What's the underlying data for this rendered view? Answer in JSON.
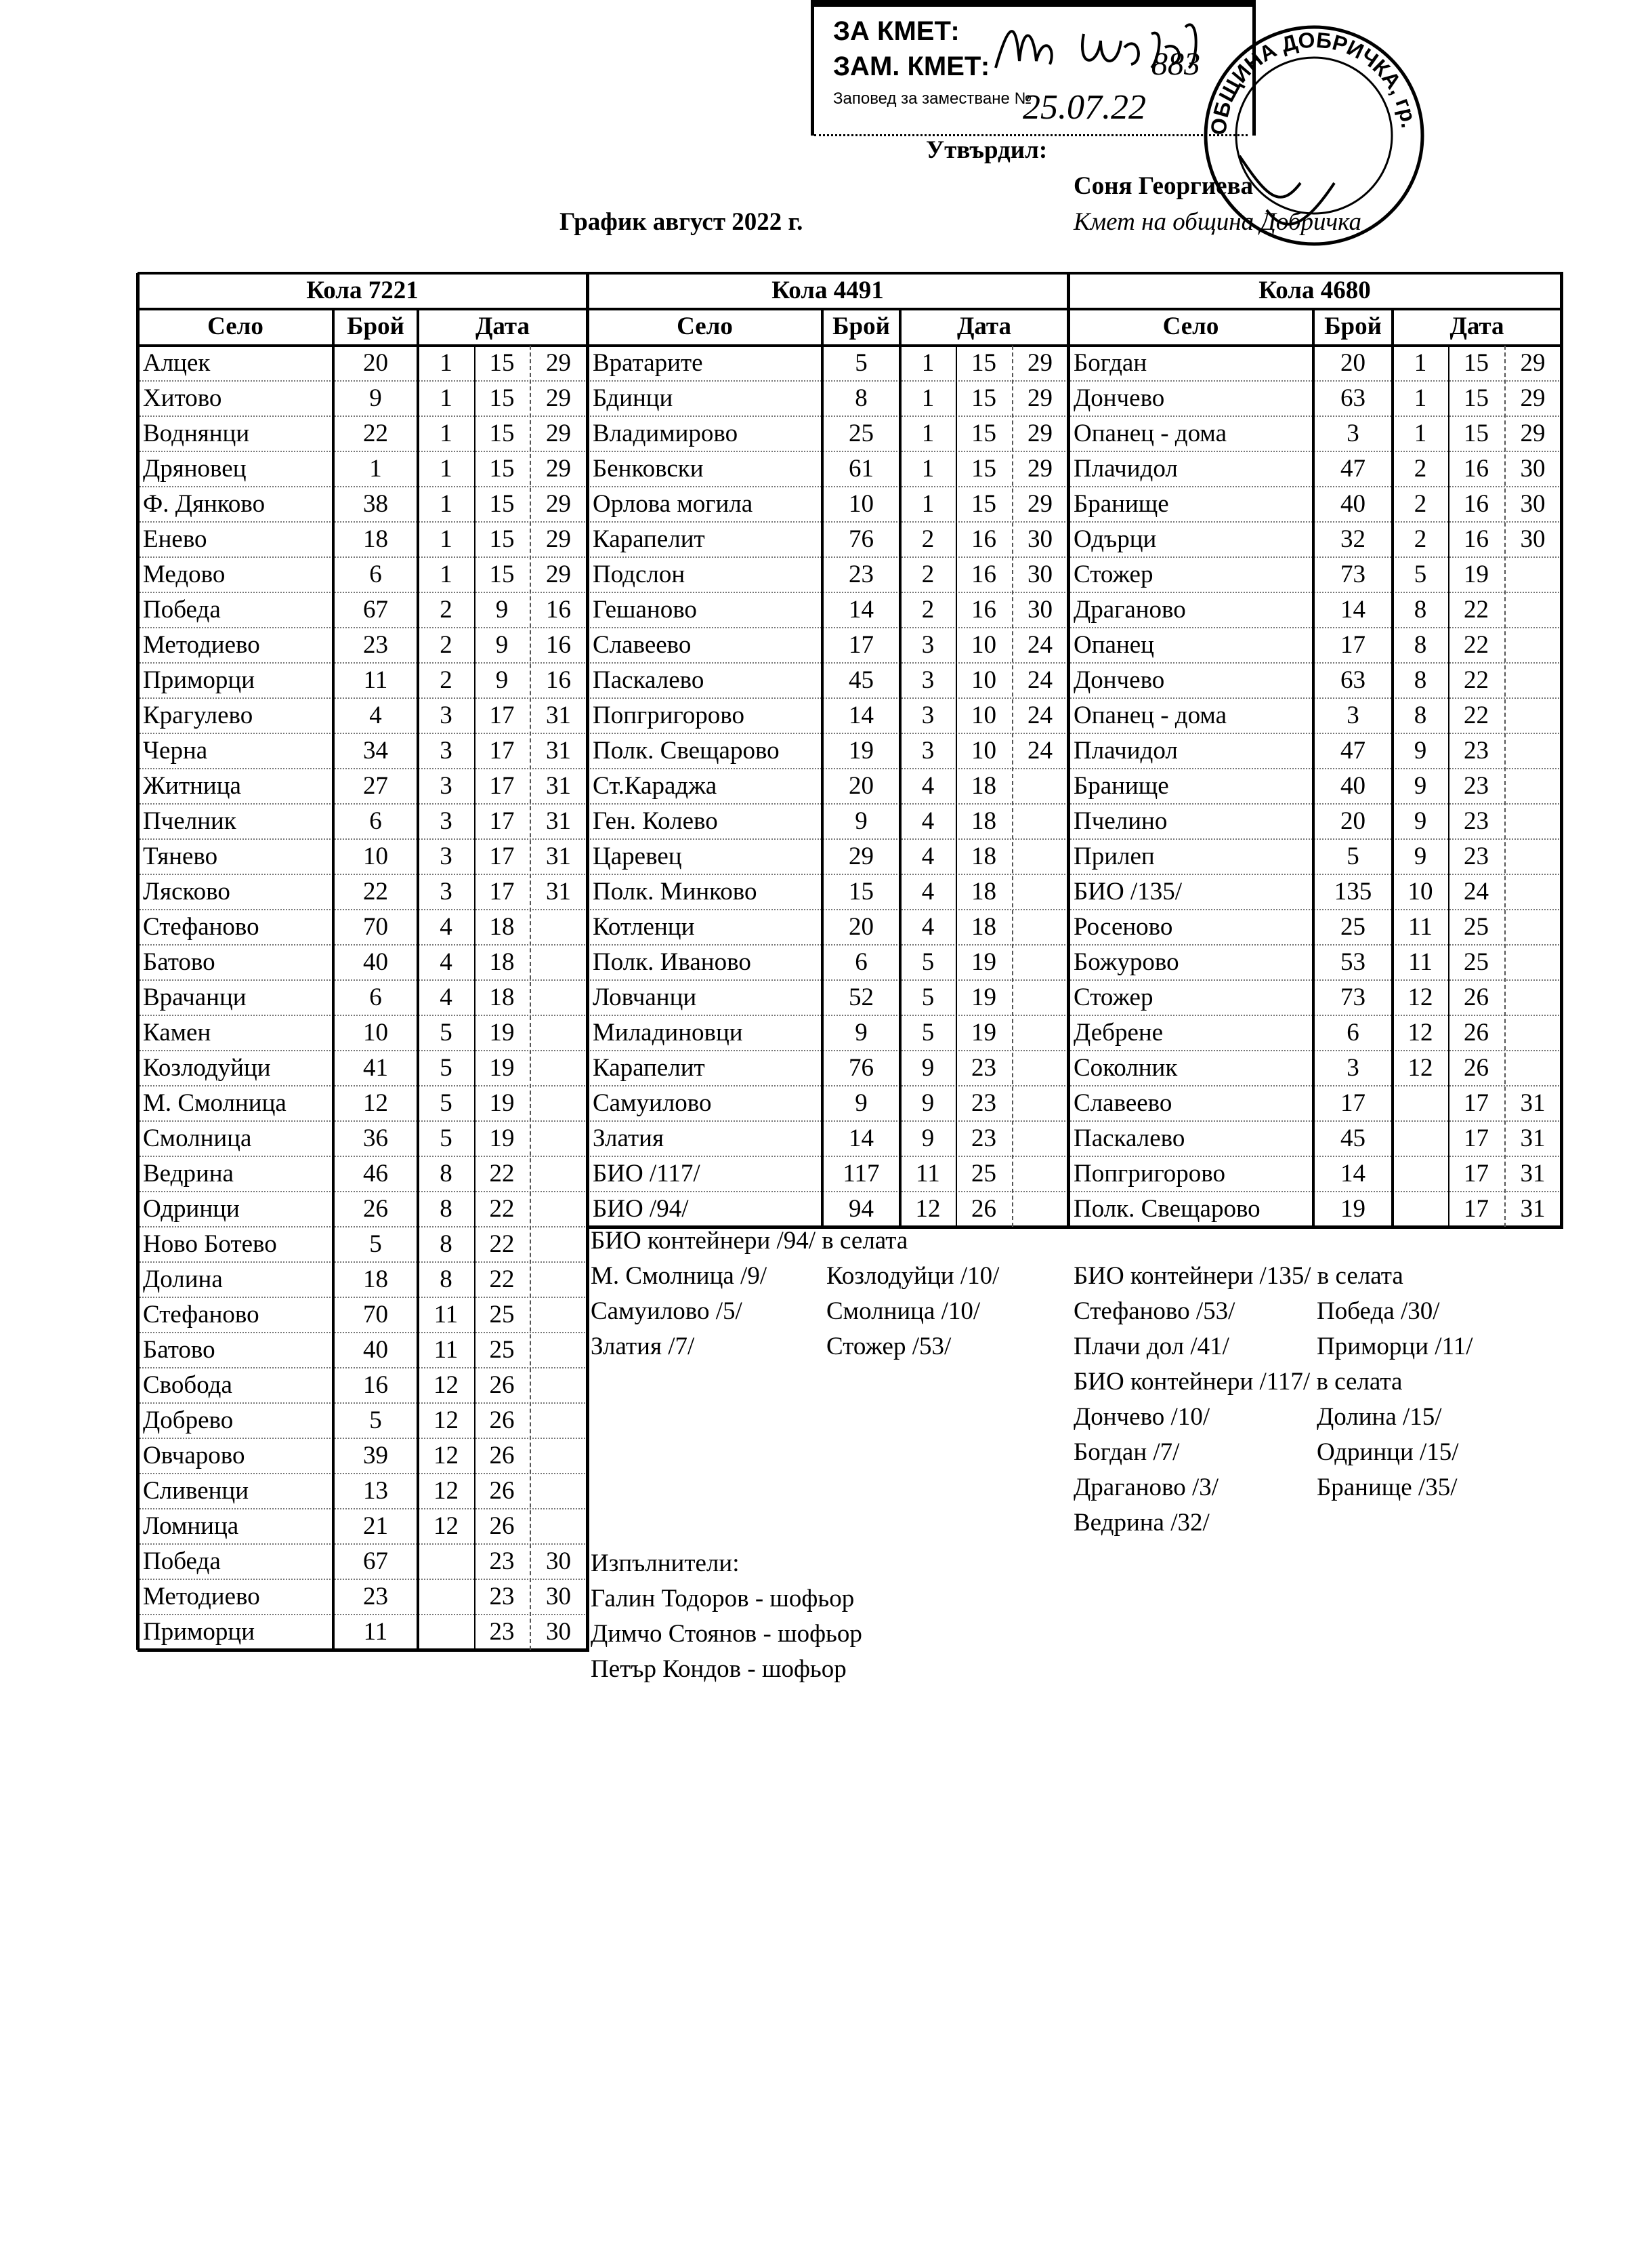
{
  "stamp": {
    "line1": "ЗА КМЕТ:",
    "line2": "ЗАМ. КМЕТ:",
    "line3": "Заповед за заместване №",
    "handwritten_number": "883",
    "handwritten_date": "25.07.22",
    "seal_text": "ОБЩИНА ДОБРИЧКА, гр. ДОБРИЧ"
  },
  "approval": {
    "label": "Утвърдил:",
    "name": "Соня Георгиева",
    "position": "Кмет  на община Добричка"
  },
  "title": "График август 2022 г.",
  "column_headers": {
    "village": "Село",
    "count": "Брой",
    "date": "Дата"
  },
  "tables": [
    {
      "title": "Кола 7221",
      "rows": [
        [
          "Алцек",
          "20",
          "1",
          "15",
          "29"
        ],
        [
          "Хитово",
          "9",
          "1",
          "15",
          "29"
        ],
        [
          "Воднянци",
          "22",
          "1",
          "15",
          "29"
        ],
        [
          "Дряновец",
          "1",
          "1",
          "15",
          "29"
        ],
        [
          "Ф. Дянково",
          "38",
          "1",
          "15",
          "29"
        ],
        [
          "Енево",
          "18",
          "1",
          "15",
          "29"
        ],
        [
          "Медово",
          "6",
          "1",
          "15",
          "29"
        ],
        [
          "Победа",
          "67",
          "2",
          "9",
          "16"
        ],
        [
          "Методиево",
          "23",
          "2",
          "9",
          "16"
        ],
        [
          "Приморци",
          "11",
          "2",
          "9",
          "16"
        ],
        [
          "Крагулево",
          "4",
          "3",
          "17",
          "31"
        ],
        [
          "Черна",
          "34",
          "3",
          "17",
          "31"
        ],
        [
          "Житница",
          "27",
          "3",
          "17",
          "31"
        ],
        [
          "Пчелник",
          "6",
          "3",
          "17",
          "31"
        ],
        [
          "Тянево",
          "10",
          "3",
          "17",
          "31"
        ],
        [
          "Лясково",
          "22",
          "3",
          "17",
          "31"
        ],
        [
          "Стефаново",
          "70",
          "4",
          "18",
          ""
        ],
        [
          "Батово",
          "40",
          "4",
          "18",
          ""
        ],
        [
          "Врачанци",
          "6",
          "4",
          "18",
          ""
        ],
        [
          "Камен",
          "10",
          "5",
          "19",
          ""
        ],
        [
          "Козлодуйци",
          "41",
          "5",
          "19",
          ""
        ],
        [
          "М. Смолница",
          "12",
          "5",
          "19",
          ""
        ],
        [
          "Смолница",
          "36",
          "5",
          "19",
          ""
        ],
        [
          "Ведрина",
          "46",
          "8",
          "22",
          ""
        ],
        [
          "Одринци",
          "26",
          "8",
          "22",
          ""
        ],
        [
          "Ново Ботево",
          "5",
          "8",
          "22",
          ""
        ],
        [
          "Долина",
          "18",
          "8",
          "22",
          ""
        ],
        [
          "Стефаново",
          "70",
          "11",
          "25",
          ""
        ],
        [
          "Батово",
          "40",
          "11",
          "25",
          ""
        ],
        [
          "Свобода",
          "16",
          "12",
          "26",
          ""
        ],
        [
          "Добрево",
          "5",
          "12",
          "26",
          ""
        ],
        [
          "Овчарово",
          "39",
          "12",
          "26",
          ""
        ],
        [
          "Сливенци",
          "13",
          "12",
          "26",
          ""
        ],
        [
          "Ломница",
          "21",
          "12",
          "26",
          ""
        ],
        [
          "Победа",
          "67",
          "",
          "23",
          "30"
        ],
        [
          "Методиево",
          "23",
          "",
          "23",
          "30"
        ],
        [
          "Приморци",
          "11",
          "",
          "23",
          "30"
        ]
      ]
    },
    {
      "title": "Кола 4491",
      "rows": [
        [
          "Вратарите",
          "5",
          "1",
          "15",
          "29"
        ],
        [
          "Бдинци",
          "8",
          "1",
          "15",
          "29"
        ],
        [
          "Владимирово",
          "25",
          "1",
          "15",
          "29"
        ],
        [
          "Бенковски",
          "61",
          "1",
          "15",
          "29"
        ],
        [
          "Орлова могила",
          "10",
          "1",
          "15",
          "29"
        ],
        [
          "Карапелит",
          "76",
          "2",
          "16",
          "30"
        ],
        [
          "Подслон",
          "23",
          "2",
          "16",
          "30"
        ],
        [
          "Гешаново",
          "14",
          "2",
          "16",
          "30"
        ],
        [
          "Славеево",
          "17",
          "3",
          "10",
          "24"
        ],
        [
          "Паскалево",
          "45",
          "3",
          "10",
          "24"
        ],
        [
          "Попгригорово",
          "14",
          "3",
          "10",
          "24"
        ],
        [
          "Полк. Свещарово",
          "19",
          "3",
          "10",
          "24"
        ],
        [
          "Ст.Караджа",
          "20",
          "4",
          "18",
          ""
        ],
        [
          "Ген. Колево",
          "9",
          "4",
          "18",
          ""
        ],
        [
          "Царевец",
          "29",
          "4",
          "18",
          ""
        ],
        [
          "Полк. Минково",
          "15",
          "4",
          "18",
          ""
        ],
        [
          "Котленци",
          "20",
          "4",
          "18",
          ""
        ],
        [
          "Полк. Иваново",
          "6",
          "5",
          "19",
          ""
        ],
        [
          "Ловчанци",
          "52",
          "5",
          "19",
          ""
        ],
        [
          "Миладиновци",
          "9",
          "5",
          "19",
          ""
        ],
        [
          "Карапелит",
          "76",
          "9",
          "23",
          ""
        ],
        [
          "Самуилово",
          "9",
          "9",
          "23",
          ""
        ],
        [
          "Златия",
          "14",
          "9",
          "23",
          ""
        ],
        [
          "БИО /117/",
          "117",
          "11",
          "25",
          ""
        ],
        [
          "БИО /94/",
          "94",
          "12",
          "26",
          ""
        ]
      ]
    },
    {
      "title": "Кола 4680",
      "rows": [
        [
          "Богдан",
          "20",
          "1",
          "15",
          "29"
        ],
        [
          "Дончево",
          "63",
          "1",
          "15",
          "29"
        ],
        [
          "Опанец - дома",
          "3",
          "1",
          "15",
          "29"
        ],
        [
          "Плачидол",
          "47",
          "2",
          "16",
          "30"
        ],
        [
          "Бранище",
          "40",
          "2",
          "16",
          "30"
        ],
        [
          "Одърци",
          "32",
          "2",
          "16",
          "30"
        ],
        [
          "Стожер",
          "73",
          "5",
          "19",
          ""
        ],
        [
          "Драганово",
          "14",
          "8",
          "22",
          ""
        ],
        [
          "Опанец",
          "17",
          "8",
          "22",
          ""
        ],
        [
          "Дончево",
          "63",
          "8",
          "22",
          ""
        ],
        [
          "Опанец - дома",
          "3",
          "8",
          "22",
          ""
        ],
        [
          "Плачидол",
          "47",
          "9",
          "23",
          ""
        ],
        [
          "Бранище",
          "40",
          "9",
          "23",
          ""
        ],
        [
          "Пчелино",
          "20",
          "9",
          "23",
          ""
        ],
        [
          "Прилеп",
          "5",
          "9",
          "23",
          ""
        ],
        [
          "БИО /135/",
          "135",
          "10",
          "24",
          ""
        ],
        [
          "Росеново",
          "25",
          "11",
          "25",
          ""
        ],
        [
          "Божурово",
          "53",
          "11",
          "25",
          ""
        ],
        [
          "Стожер",
          "73",
          "12",
          "26",
          ""
        ],
        [
          "Дебрене",
          "6",
          "12",
          "26",
          ""
        ],
        [
          "Соколник",
          "3",
          "12",
          "26",
          ""
        ],
        [
          "Славеево",
          "17",
          "",
          "17",
          "31"
        ],
        [
          "Паскалево",
          "45",
          "",
          "17",
          "31"
        ],
        [
          "Попгригорово",
          "14",
          "",
          "17",
          "31"
        ],
        [
          "Полк. Свещарово",
          "19",
          "",
          "17",
          "31"
        ]
      ]
    }
  ],
  "bio_94": {
    "heading": "БИО контейнери /94/ в селата",
    "items": [
      "М. Смолница /9/",
      "Козлодуйци /10/",
      "Самуилово /5/",
      "Смолница /10/",
      "Златия /7/",
      "Стожер /53/"
    ]
  },
  "bio_135": {
    "heading": "БИО контейнери /135/ в селата",
    "items": [
      "Стефаново /53/",
      "Победа /30/",
      "Плачи дол /41/",
      "Приморци /11/"
    ]
  },
  "bio_117": {
    "heading": "БИО контейнери /117/ в селата",
    "items": [
      "Дончево /10/",
      "Долина /15/",
      "Богдан /7/",
      "Одринци /15/",
      "Драганово /3/",
      "Бранище /35/",
      "Ведрина /32/"
    ]
  },
  "executors": {
    "heading": "Изпълнители:",
    "people": [
      "Галин Тодоров - шофьор",
      "Димчо Стоянов - шофьор",
      "Петър Кондов - шофьор"
    ]
  }
}
